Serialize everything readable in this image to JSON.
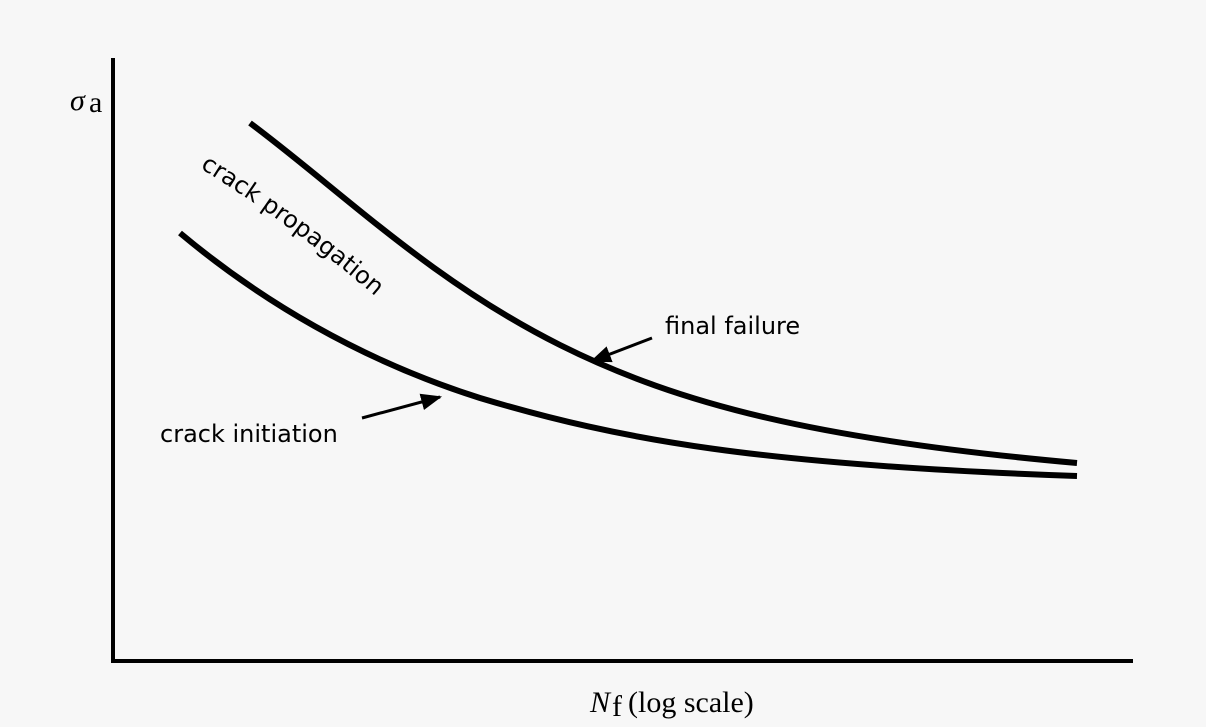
{
  "y_axis_label": {
    "symbol": "σ",
    "subscript": "a"
  },
  "x_axis_label": {
    "symbol": "N",
    "subscript": "f",
    "suffix": "(log scale)"
  },
  "curves": [
    {
      "label": "crack initiation"
    },
    {
      "label": "final failure"
    }
  ],
  "region_label": "crack propagation"
}
